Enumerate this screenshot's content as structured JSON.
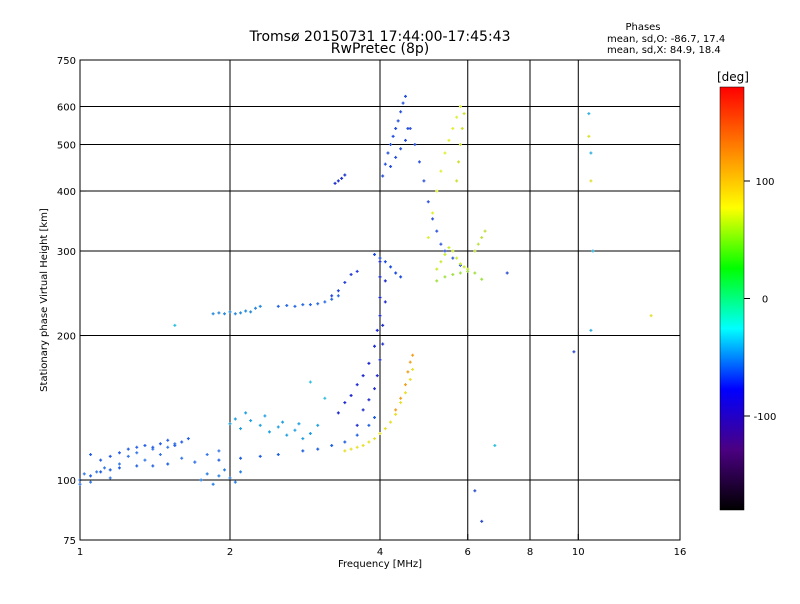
{
  "chart_data": {
    "type": "scatter",
    "title": "Tromsø 20150731 17:44:00-17:45:43",
    "subtitle": "RwPretec (8p)",
    "xlabel": "Frequency [MHz]",
    "ylabel": "Stationary phase Virtual Height [km]",
    "x_scale": "log",
    "y_scale": "log",
    "xlim": [
      1,
      16
    ],
    "ylim": [
      75,
      750
    ],
    "x_ticks": [
      1,
      2,
      4,
      6,
      8,
      10,
      16
    ],
    "y_ticks": [
      75,
      100,
      200,
      300,
      400,
      500,
      600,
      750
    ],
    "x_gridlines": [
      2,
      4,
      6,
      8,
      10
    ],
    "y_gridlines": [
      100,
      200,
      300,
      400,
      500,
      600
    ],
    "grid": true,
    "stats": {
      "heading": "Phases",
      "line_o": "mean, sd,O: -86.7, 17.4",
      "line_x": "mean, sd,X:  84.9, 18.4"
    },
    "colorbar": {
      "label": "[deg]",
      "range": [
        -180,
        180
      ],
      "ticks": [
        100,
        0,
        -100
      ],
      "colors": [
        "#ff0000",
        "#ff8000",
        "#ffff00",
        "#00ff00",
        "#00ffff",
        "#0000ff",
        "#4b0082",
        "#000000"
      ]
    },
    "series": [
      {
        "color": "#1e60e0",
        "points": [
          [
            1.0,
            100
          ],
          [
            1.05,
            102
          ],
          [
            1.1,
            104
          ],
          [
            1.15,
            105
          ],
          [
            1.2,
            106
          ],
          [
            1.3,
            107
          ],
          [
            1.4,
            107
          ],
          [
            1.5,
            108
          ],
          [
            1.7,
            109
          ],
          [
            1.9,
            110
          ],
          [
            2.1,
            111
          ],
          [
            2.3,
            112
          ],
          [
            2.5,
            113
          ],
          [
            2.8,
            115
          ],
          [
            3.0,
            116
          ],
          [
            3.2,
            118
          ],
          [
            3.4,
            120
          ],
          [
            3.6,
            124
          ],
          [
            3.8,
            130
          ],
          [
            3.9,
            135
          ]
        ]
      },
      {
        "color": "#3a7ae8",
        "points": [
          [
            1.0,
            98
          ],
          [
            1.02,
            103
          ],
          [
            1.05,
            99
          ],
          [
            1.08,
            104
          ],
          [
            1.12,
            106
          ],
          [
            1.15,
            101
          ],
          [
            1.2,
            108
          ],
          [
            1.25,
            112
          ],
          [
            1.3,
            114
          ],
          [
            1.35,
            110
          ],
          [
            1.4,
            116
          ],
          [
            1.45,
            113
          ],
          [
            1.5,
            117
          ],
          [
            1.55,
            119
          ],
          [
            1.6,
            111
          ],
          [
            1.7,
            109
          ],
          [
            1.8,
            113
          ],
          [
            1.9,
            115
          ]
        ]
      },
      {
        "color": "#2860e6",
        "points": [
          [
            1.05,
            113
          ],
          [
            1.1,
            110
          ],
          [
            1.15,
            112
          ],
          [
            1.2,
            114
          ],
          [
            1.25,
            116
          ],
          [
            1.3,
            117
          ],
          [
            1.35,
            118
          ],
          [
            1.4,
            117
          ],
          [
            1.45,
            119
          ],
          [
            1.5,
            121
          ],
          [
            1.55,
            118
          ],
          [
            1.6,
            120
          ],
          [
            1.65,
            122
          ]
        ]
      },
      {
        "color": "#20a0e0",
        "points": [
          [
            2.0,
            131
          ],
          [
            2.05,
            134
          ],
          [
            2.1,
            128
          ],
          [
            2.2,
            133
          ],
          [
            2.3,
            130
          ],
          [
            2.4,
            126
          ],
          [
            2.5,
            129
          ],
          [
            2.6,
            124
          ],
          [
            2.7,
            127
          ],
          [
            2.8,
            122
          ],
          [
            2.9,
            125
          ],
          [
            3.0,
            130
          ],
          [
            2.15,
            138
          ],
          [
            2.35,
            136
          ],
          [
            2.55,
            132
          ],
          [
            2.75,
            131
          ]
        ]
      },
      {
        "color": "#2a80e4",
        "points": [
          [
            1.75,
            100
          ],
          [
            1.8,
            103
          ],
          [
            1.85,
            98
          ],
          [
            1.9,
            102
          ],
          [
            1.95,
            105
          ],
          [
            2.0,
            101
          ],
          [
            2.05,
            99
          ],
          [
            2.1,
            104
          ]
        ]
      },
      {
        "color": "#2a8cdc",
        "points": [
          [
            1.85,
            222
          ],
          [
            1.9,
            223
          ],
          [
            1.95,
            222
          ],
          [
            2.0,
            224
          ],
          [
            2.05,
            222
          ],
          [
            2.1,
            223
          ],
          [
            2.15,
            225
          ],
          [
            2.2,
            224
          ],
          [
            2.25,
            228
          ],
          [
            2.3,
            230
          ]
        ]
      },
      {
        "color": "#2a6ae2",
        "points": [
          [
            2.5,
            230
          ],
          [
            2.6,
            231
          ],
          [
            2.7,
            230
          ],
          [
            2.8,
            232
          ],
          [
            2.9,
            232
          ],
          [
            3.0,
            233
          ],
          [
            3.1,
            235
          ],
          [
            3.2,
            238
          ],
          [
            3.3,
            242
          ]
        ]
      },
      {
        "color": "#2a40d8",
        "points": [
          [
            3.2,
            242
          ],
          [
            3.3,
            248
          ],
          [
            3.4,
            258
          ],
          [
            3.5,
            268
          ],
          [
            3.6,
            272
          ]
        ]
      },
      {
        "color": "#2233cc",
        "points": [
          [
            3.25,
            415
          ],
          [
            3.3,
            420
          ],
          [
            3.35,
            425
          ],
          [
            3.4,
            432
          ]
        ]
      },
      {
        "color": "#1e2ad0",
        "points": [
          [
            3.3,
            138
          ],
          [
            3.4,
            145
          ],
          [
            3.5,
            150
          ],
          [
            3.6,
            158
          ],
          [
            3.7,
            165
          ],
          [
            3.8,
            175
          ],
          [
            3.9,
            190
          ],
          [
            3.95,
            205
          ],
          [
            4.0,
            220
          ],
          [
            4.0,
            240
          ],
          [
            4.0,
            265
          ],
          [
            4.0,
            285
          ]
        ]
      },
      {
        "color": "#2430cc",
        "points": [
          [
            3.6,
            130
          ],
          [
            3.7,
            140
          ],
          [
            3.8,
            147
          ],
          [
            3.9,
            155
          ],
          [
            3.95,
            165
          ],
          [
            4.0,
            178
          ],
          [
            4.05,
            192
          ],
          [
            4.05,
            210
          ],
          [
            4.1,
            235
          ],
          [
            4.1,
            260
          ]
        ]
      },
      {
        "color": "#1a4ae0",
        "points": [
          [
            3.9,
            295
          ],
          [
            4.0,
            290
          ],
          [
            4.1,
            285
          ],
          [
            4.2,
            278
          ],
          [
            4.3,
            270
          ],
          [
            4.4,
            265
          ]
        ]
      },
      {
        "color": "#2550e0",
        "points": [
          [
            4.05,
            430
          ],
          [
            4.1,
            455
          ],
          [
            4.15,
            480
          ],
          [
            4.2,
            500
          ],
          [
            4.25,
            520
          ],
          [
            4.3,
            540
          ],
          [
            4.35,
            560
          ],
          [
            4.4,
            585
          ],
          [
            4.45,
            610
          ],
          [
            4.5,
            630
          ],
          [
            4.2,
            450
          ],
          [
            4.3,
            470
          ],
          [
            4.4,
            490
          ],
          [
            4.5,
            510
          ],
          [
            4.55,
            540
          ]
        ]
      },
      {
        "color": "#3355dd",
        "points": [
          [
            4.6,
            540
          ],
          [
            4.7,
            500
          ],
          [
            4.8,
            460
          ],
          [
            4.9,
            420
          ],
          [
            5.0,
            380
          ],
          [
            5.1,
            350
          ],
          [
            5.2,
            330
          ],
          [
            5.3,
            310
          ],
          [
            5.4,
            300
          ],
          [
            5.6,
            290
          ],
          [
            5.8,
            280
          ]
        ]
      },
      {
        "color": "#e8e02a",
        "points": [
          [
            3.4,
            115
          ],
          [
            3.5,
            116
          ],
          [
            3.6,
            117
          ],
          [
            3.7,
            118
          ],
          [
            3.8,
            120
          ],
          [
            3.9,
            122
          ],
          [
            4.0,
            125
          ],
          [
            4.1,
            128
          ],
          [
            4.2,
            132
          ],
          [
            4.3,
            137
          ],
          [
            4.4,
            145
          ],
          [
            4.5,
            152
          ],
          [
            4.6,
            162
          ],
          [
            4.65,
            170
          ]
        ]
      },
      {
        "color": "#f0a020",
        "points": [
          [
            4.3,
            140
          ],
          [
            4.4,
            148
          ],
          [
            4.5,
            158
          ],
          [
            4.55,
            168
          ],
          [
            4.6,
            176
          ],
          [
            4.65,
            182
          ]
        ]
      },
      {
        "color": "#e0f030",
        "points": [
          [
            5.0,
            320
          ],
          [
            5.1,
            360
          ],
          [
            5.2,
            400
          ],
          [
            5.3,
            440
          ],
          [
            5.4,
            480
          ],
          [
            5.5,
            510
          ],
          [
            5.6,
            540
          ],
          [
            5.7,
            570
          ],
          [
            5.8,
            600
          ]
        ]
      },
      {
        "color": "#c8ec30",
        "points": [
          [
            5.2,
            275
          ],
          [
            5.3,
            285
          ],
          [
            5.4,
            295
          ],
          [
            5.5,
            305
          ],
          [
            5.6,
            300
          ],
          [
            5.7,
            290
          ],
          [
            5.8,
            282
          ],
          [
            5.9,
            278
          ],
          [
            6.0,
            275
          ]
        ]
      },
      {
        "color": "#a0e040",
        "points": [
          [
            5.2,
            260
          ],
          [
            5.4,
            265
          ],
          [
            5.6,
            268
          ],
          [
            5.8,
            270
          ],
          [
            6.0,
            272
          ],
          [
            6.2,
            270
          ],
          [
            6.4,
            262
          ]
        ]
      },
      {
        "color": "#c0e040",
        "points": [
          [
            6.2,
            300
          ],
          [
            6.3,
            310
          ],
          [
            6.4,
            320
          ],
          [
            6.5,
            330
          ]
        ]
      },
      {
        "color": "#d0e030",
        "points": [
          [
            5.7,
            420
          ],
          [
            5.75,
            460
          ],
          [
            5.8,
            500
          ],
          [
            5.85,
            540
          ],
          [
            5.9,
            580
          ]
        ]
      },
      {
        "color": "#30b0e0",
        "points": [
          [
            10.5,
            580
          ],
          [
            10.6,
            480
          ],
          [
            10.7,
            300
          ],
          [
            10.6,
            205
          ]
        ]
      },
      {
        "color": "#e0e030",
        "points": [
          [
            10.5,
            520
          ],
          [
            10.6,
            420
          ],
          [
            14.0,
            220
          ]
        ]
      },
      {
        "color": "#3050d0",
        "points": [
          [
            6.2,
            95
          ],
          [
            6.4,
            82
          ],
          [
            7.2,
            270
          ],
          [
            9.8,
            185
          ]
        ]
      },
      {
        "color": "#30c0e0",
        "points": [
          [
            2.9,
            160
          ],
          [
            3.1,
            148
          ],
          [
            1.55,
            210
          ],
          [
            6.8,
            118
          ]
        ]
      }
    ]
  }
}
